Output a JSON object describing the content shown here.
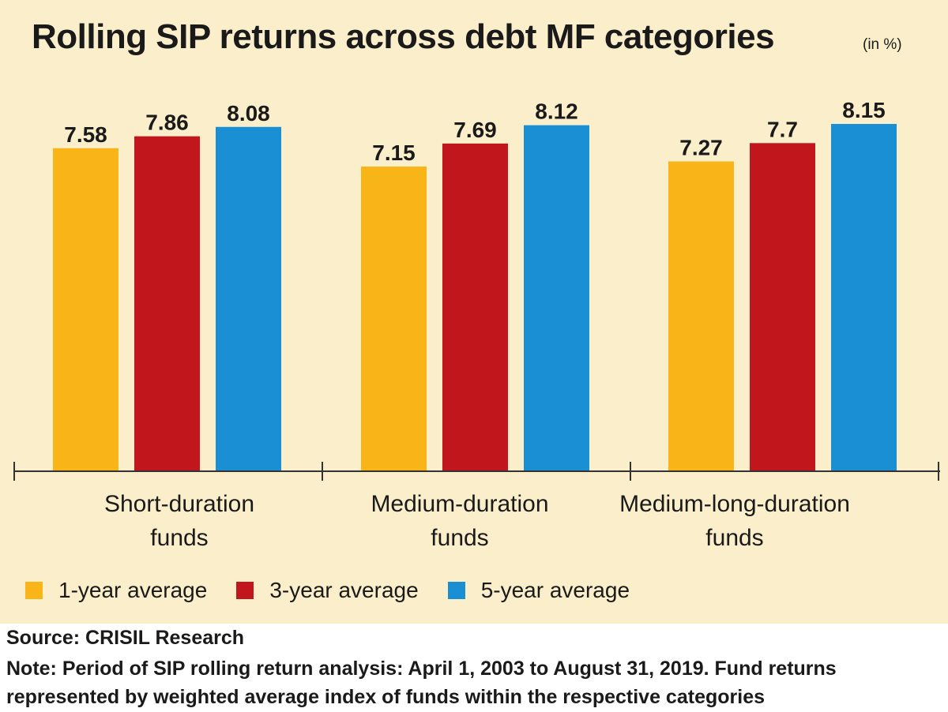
{
  "title": "Rolling SIP returns across debt MF categories",
  "unit": "(in %)",
  "source": "Source: CRISIL Research",
  "note": "Note: Period of SIP rolling return analysis: April 1, 2003 to August 31, 2019. Fund returns represented by weighted average index of funds within the respective categories",
  "colors": {
    "background": "#fbeeca",
    "one_year": "#f9b518",
    "three_year": "#c0161c",
    "five_year": "#1b8fd4"
  },
  "chart_data": {
    "type": "bar",
    "categories": [
      [
        "Short-duration",
        "funds"
      ],
      [
        "Medium-duration",
        "funds"
      ],
      [
        "Medium-long-duration",
        "funds"
      ]
    ],
    "series": [
      {
        "name": "1-year average",
        "color": "#f9b518",
        "values": [
          7.58,
          7.15,
          7.27
        ],
        "labels": [
          "7.58",
          "7.15",
          "7.27"
        ]
      },
      {
        "name": "3-year average",
        "color": "#c0161c",
        "values": [
          7.86,
          7.69,
          7.7
        ],
        "labels": [
          "7.86",
          "7.69",
          "7.7"
        ]
      },
      {
        "name": "5-year average",
        "color": "#1b8fd4",
        "values": [
          8.08,
          8.12,
          8.15
        ],
        "labels": [
          "8.08",
          "8.12",
          "8.15"
        ]
      }
    ],
    "ylim": [
      0,
      8.15
    ],
    "grid": false,
    "legend": "bottom"
  }
}
